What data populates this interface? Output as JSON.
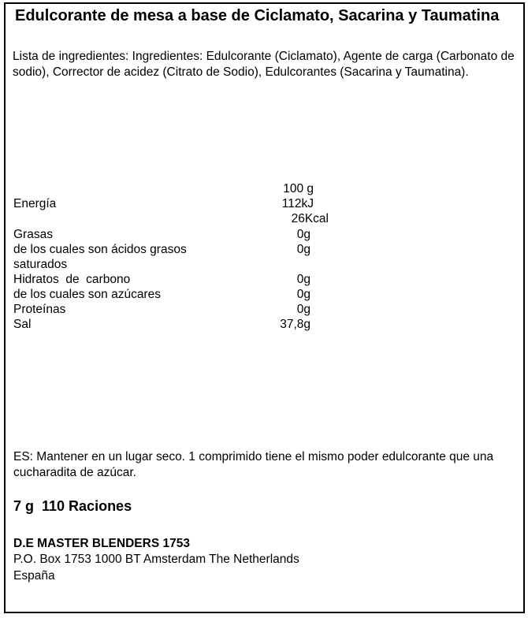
{
  "product": {
    "title": "Edulcorante de mesa a base de Ciclamato, Sacarina y Taumatina",
    "ingredients": "Lista de ingredientes: Ingredientes: Edulcorante (Ciclamato), Agente de carga (Carbonato de sodio), Corrector de acidez (Citrato de Sodio), Edulcorantes (Sacarina y Taumatina)."
  },
  "nutrition": {
    "column_header": "100 g",
    "energy_label": "Energía",
    "energy_kj": "112kJ",
    "energy_kcal": "26Kcal",
    "rows": [
      {
        "label": "Grasas",
        "value": "0g"
      },
      {
        "label": "de los cuales son ácidos grasos",
        "label2": "saturados",
        "value": "0g"
      },
      {
        "label": "Hidratos  de  carbono",
        "value": "0g"
      },
      {
        "label": "de los cuales son azúcares",
        "value": "0g"
      },
      {
        "label": "Proteínas",
        "value": "0g"
      },
      {
        "label": "Sal",
        "value": "37,8g"
      }
    ]
  },
  "storage": "ES: Mantener en un lugar seco. 1 comprimido tiene el mismo poder edulcorante que una cucharadita de azúcar.",
  "portions": "7 g  110 Raciones",
  "manufacturer": {
    "name": "D.E MASTER BLENDERS 1753",
    "address": "P.O. Box 1753 1000 BT Amsterdam The Netherlands",
    "country": "España"
  }
}
